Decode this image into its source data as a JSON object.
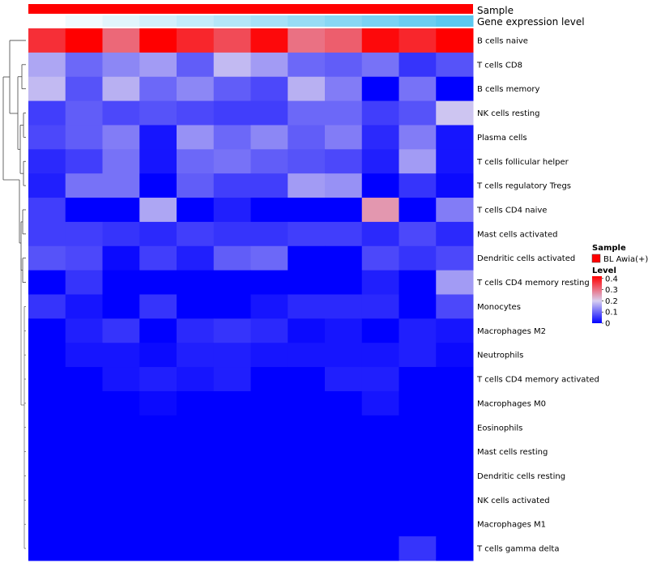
{
  "chart_data": {
    "type": "heatmap",
    "annotation_labels": {
      "sample": "Sample",
      "gene_expression": "Gene expression level"
    },
    "legend": {
      "sample_title": "Sample",
      "sample_entry": "BL Awia(+)",
      "sample_color": "#ff0000",
      "level_title": "Level",
      "level_ticks": [
        "0.4",
        "0.3",
        "0.2",
        "0.1",
        "0"
      ],
      "level_range": [
        0,
        0.42
      ]
    },
    "gene_expression_gradient": [
      "#ffffff",
      "#5bc8f0"
    ],
    "color_scale": {
      "low": "#0000ff",
      "mid": "#d8cff0",
      "high": "#ff0000",
      "mid_value": 0.2
    },
    "rows": [
      "B cells naive",
      "T cells CD8",
      "B cells memory",
      "NK cells resting",
      "Plasma cells",
      "T cells follicular helper",
      "T cells regulatory  Tregs",
      "T cells CD4 naive",
      "Mast cells activated",
      "Dendritic cells activated",
      "T cells CD4 memory resting",
      "Monocytes",
      "Macrophages M2",
      "Neutrophils",
      "T cells CD4 memory activated",
      "Macrophages M0",
      "Eosinophils",
      "Mast cells resting",
      "Dendritic cells resting",
      "NK cells activated",
      "Macrophages M1",
      "T cells gamma delta"
    ],
    "values": [
      [
        0.37,
        0.42,
        0.31,
        0.42,
        0.38,
        0.34,
        0.41,
        0.3,
        0.32,
        0.41,
        0.38,
        0.42
      ],
      [
        0.16,
        0.1,
        0.13,
        0.15,
        0.09,
        0.18,
        0.15,
        0.1,
        0.09,
        0.11,
        0.05,
        0.08
      ],
      [
        0.18,
        0.08,
        0.17,
        0.1,
        0.13,
        0.09,
        0.07,
        0.17,
        0.12,
        0.0,
        0.11,
        0.0
      ],
      [
        0.06,
        0.09,
        0.07,
        0.08,
        0.07,
        0.06,
        0.06,
        0.1,
        0.1,
        0.06,
        0.08,
        0.19
      ],
      [
        0.07,
        0.09,
        0.12,
        0.02,
        0.14,
        0.1,
        0.13,
        0.09,
        0.12,
        0.04,
        0.12,
        0.02
      ],
      [
        0.04,
        0.06,
        0.11,
        0.02,
        0.1,
        0.11,
        0.09,
        0.08,
        0.07,
        0.03,
        0.15,
        0.02
      ],
      [
        0.03,
        0.11,
        0.11,
        0.0,
        0.09,
        0.06,
        0.06,
        0.15,
        0.14,
        0.0,
        0.05,
        0.01
      ],
      [
        0.06,
        0.0,
        0.0,
        0.16,
        0.0,
        0.03,
        0.0,
        0.0,
        0.0,
        0.26,
        0.0,
        0.12
      ],
      [
        0.06,
        0.06,
        0.05,
        0.04,
        0.06,
        0.05,
        0.05,
        0.06,
        0.06,
        0.04,
        0.07,
        0.04
      ],
      [
        0.08,
        0.07,
        0.01,
        0.06,
        0.03,
        0.09,
        0.1,
        0.0,
        0.0,
        0.07,
        0.05,
        0.07
      ],
      [
        0.0,
        0.05,
        0.0,
        0.0,
        0.0,
        0.0,
        0.0,
        0.0,
        0.0,
        0.03,
        0.0,
        0.15
      ],
      [
        0.05,
        0.02,
        0.0,
        0.05,
        0.0,
        0.0,
        0.02,
        0.04,
        0.04,
        0.04,
        0.0,
        0.07
      ],
      [
        0.0,
        0.03,
        0.05,
        0.0,
        0.04,
        0.05,
        0.04,
        0.01,
        0.02,
        0.0,
        0.03,
        0.02
      ],
      [
        0.0,
        0.02,
        0.02,
        0.01,
        0.03,
        0.03,
        0.02,
        0.02,
        0.02,
        0.02,
        0.03,
        0.01
      ],
      [
        0.0,
        0.0,
        0.02,
        0.03,
        0.02,
        0.03,
        0.0,
        0.0,
        0.03,
        0.03,
        0.0,
        0.0
      ],
      [
        0.0,
        0.0,
        0.0,
        0.01,
        0.0,
        0.0,
        0.0,
        0.0,
        0.0,
        0.02,
        0.0,
        0.0
      ],
      [
        0.0,
        0.0,
        0.0,
        0.0,
        0.0,
        0.0,
        0.0,
        0.0,
        0.0,
        0.0,
        0.0,
        0.0
      ],
      [
        0.0,
        0.0,
        0.0,
        0.0,
        0.0,
        0.0,
        0.0,
        0.0,
        0.0,
        0.0,
        0.0,
        0.0
      ],
      [
        0.0,
        0.0,
        0.0,
        0.0,
        0.0,
        0.0,
        0.0,
        0.0,
        0.0,
        0.0,
        0.0,
        0.0
      ],
      [
        0.0,
        0.0,
        0.0,
        0.0,
        0.0,
        0.0,
        0.0,
        0.0,
        0.0,
        0.0,
        0.0,
        0.0
      ],
      [
        0.0,
        0.0,
        0.0,
        0.0,
        0.0,
        0.0,
        0.0,
        0.0,
        0.0,
        0.0,
        0.0,
        0.0
      ],
      [
        0.0,
        0.0,
        0.0,
        0.0,
        0.0,
        0.0,
        0.0,
        0.0,
        0.0,
        0.0,
        0.05,
        0.0
      ]
    ]
  }
}
